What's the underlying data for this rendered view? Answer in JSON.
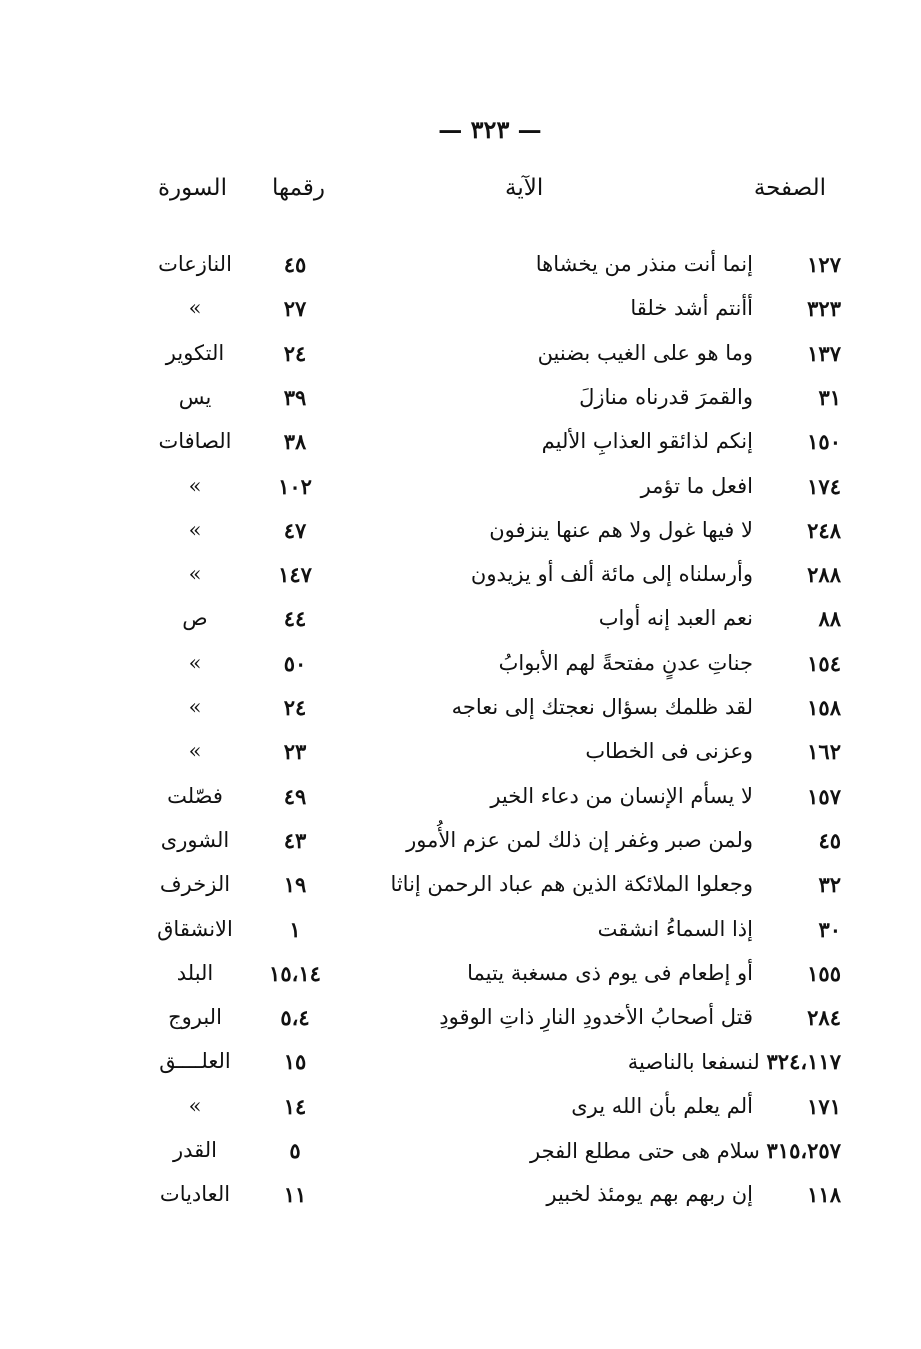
{
  "page_number": "— ٣٢٣ —",
  "headers": {
    "page": "الصفحة",
    "verse": "الآية",
    "number": "رقمها",
    "surah": "السورة"
  },
  "rows": [
    {
      "page": "١٢٧",
      "verse": "إنما أنت منذر من يخشاها",
      "number": "٤٥",
      "surah": "النازعات"
    },
    {
      "page": "٣٢٣",
      "verse": "أأنتم أشد خلقا",
      "number": "٢٧",
      "surah": "»"
    },
    {
      "page": "١٣٧",
      "verse": "وما هو على الغيب بضنين",
      "number": "٢٤",
      "surah": "التكوير"
    },
    {
      "page": "٣١",
      "verse": "والقمرَ قدرناه منازلَ",
      "number": "٣٩",
      "surah": "يس"
    },
    {
      "page": "١٥٠",
      "verse": "إنكم لذائقو العذابِ الأليم",
      "number": "٣٨",
      "surah": "الصافات"
    },
    {
      "page": "١٧٤",
      "verse": "افعل ما تؤمر",
      "number": "١٠٢",
      "surah": "»"
    },
    {
      "page": "٢٤٨",
      "verse": "لا فيها غول ولا هم عنها ينزفون",
      "number": "٤٧",
      "surah": "»"
    },
    {
      "page": "٢٨٨",
      "verse": "وأرسلناه إلى مائة ألف أو يزيدون",
      "number": "١٤٧",
      "surah": "»"
    },
    {
      "page": "٨٨",
      "verse": "نعم العبد إنه أواب",
      "number": "٤٤",
      "surah": "ص"
    },
    {
      "page": "١٥٤",
      "verse": "جناتِ عدنٍ مفتحةً لهم الأبوابُ",
      "number": "٥٠",
      "surah": "»"
    },
    {
      "page": "١٥٨",
      "verse": "لقد ظلمك بسؤال نعجتك إلى نعاجه",
      "number": "٢٤",
      "surah": "»"
    },
    {
      "page": "١٦٢",
      "verse": "وعزنى فى الخطاب",
      "number": "٢٣",
      "surah": "»"
    },
    {
      "page": "١٥٧",
      "verse": "لا يسأم الإنسان من دعاء الخير",
      "number": "٤٩",
      "surah": "فصّلت"
    },
    {
      "page": "٤٥",
      "verse": "ولمن صبر وغفر إن ذلك لمن عزم الأُمور",
      "number": "٤٣",
      "surah": "الشورى"
    },
    {
      "page": "٣٢",
      "verse": "وجعلوا الملائكة الذين هم عباد الرحمن إناثا",
      "number": "١٩",
      "surah": "الزخرف"
    },
    {
      "page": "٣٠",
      "verse": "إذا السماءُ انشقت",
      "number": "١",
      "surah": "الانشقاق"
    },
    {
      "page": "١٥٥",
      "verse": "أو إطعام فى يوم ذى مسغبة يتيما",
      "number": "١٥،١٤",
      "surah": "البلد"
    },
    {
      "page": "٢٨٤",
      "verse": "قتل أصحابُ الأخدودِ النارِ ذاتِ الوقودِ",
      "number": "٥،٤",
      "surah": "البروج"
    },
    {
      "page": "٣٢٤،١١٧",
      "verse": "لنسفعا بالناصية",
      "number": "١٥",
      "surah": "العلــــق",
      "merged": true
    },
    {
      "page": "١٧١",
      "verse": "ألم يعلم بأن الله يرى",
      "number": "١٤",
      "surah": "»"
    },
    {
      "page": "٣١٥،٢٥٧",
      "verse": "سلام هى حتى مطلع الفجر",
      "number": "٥",
      "surah": "القدر",
      "merged": true
    },
    {
      "page": "١١٨",
      "verse": "إن ربهم بهم يومئذ لخبير",
      "number": "١١",
      "surah": "العاديات"
    }
  ]
}
